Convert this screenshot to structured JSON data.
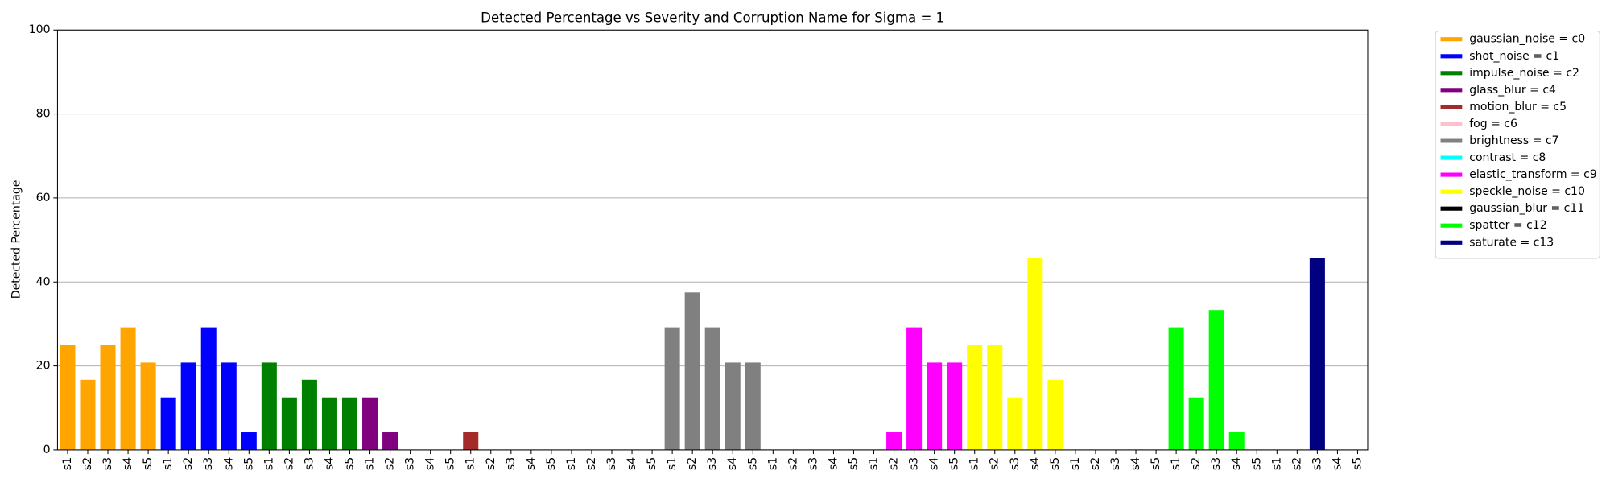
{
  "chart_data": {
    "type": "bar",
    "title": "Detected Percentage vs Severity and Corruption Name for Sigma = 1",
    "y_label": "Detected Percentage",
    "categories": [
      "s1",
      "s2",
      "s3",
      "s4",
      "s5",
      "s1",
      "s2",
      "s3",
      "s4",
      "s5",
      "s1",
      "s2",
      "s3",
      "s4",
      "s5",
      "s1",
      "s2",
      "s3",
      "s4",
      "s5",
      "s1",
      "s2",
      "s3",
      "s4",
      "s5",
      "s1",
      "s2",
      "s3",
      "s4",
      "s5",
      "s1",
      "s2",
      "s3",
      "s4",
      "s5",
      "s1",
      "s2",
      "s3",
      "s4",
      "s5",
      "s1",
      "s2",
      "s3",
      "s4",
      "s5",
      "s1",
      "s2",
      "s3",
      "s4",
      "s5",
      "s1",
      "s2",
      "s3",
      "s4",
      "s5",
      "s1",
      "s2",
      "s3",
      "s4",
      "s5",
      "s1",
      "s2",
      "s3",
      "s4",
      "s5"
    ],
    "values": [
      25,
      16.7,
      25,
      29.2,
      20.8,
      12.5,
      20.8,
      29.2,
      20.8,
      4.2,
      20.8,
      12.5,
      16.7,
      12.5,
      12.5,
      12.5,
      4.2,
      0,
      0,
      0,
      4.2,
      0,
      0,
      0,
      0,
      0,
      0,
      0,
      0,
      0,
      29.2,
      37.5,
      29.2,
      20.8,
      20.8,
      0,
      0,
      0,
      0,
      0,
      0,
      4.2,
      29.2,
      20.8,
      20.8,
      25,
      25,
      12.5,
      45.8,
      16.7,
      0,
      0,
      0,
      0,
      0,
      29.2,
      12.5,
      33.3,
      4.2,
      0,
      0,
      0,
      45.8,
      0,
      0
    ],
    "bar_colors": [
      "orange",
      "orange",
      "orange",
      "orange",
      "orange",
      "blue",
      "blue",
      "blue",
      "blue",
      "blue",
      "green",
      "green",
      "green",
      "green",
      "green",
      "purple",
      "purple",
      "purple",
      "purple",
      "purple",
      "brown",
      "brown",
      "brown",
      "brown",
      "brown",
      "pink",
      "pink",
      "pink",
      "pink",
      "pink",
      "gray",
      "gray",
      "gray",
      "gray",
      "gray",
      "cyan",
      "cyan",
      "cyan",
      "cyan",
      "cyan",
      "magenta",
      "magenta",
      "magenta",
      "magenta",
      "magenta",
      "yellow",
      "yellow",
      "yellow",
      "yellow",
      "yellow",
      "black",
      "black",
      "black",
      "black",
      "black",
      "lime",
      "lime",
      "lime",
      "lime",
      "lime",
      "navy",
      "navy",
      "navy",
      "navy",
      "navy"
    ],
    "legend": [
      {
        "name": "gaussian_noise = c0",
        "color": "orange"
      },
      {
        "name": "shot_noise = c1",
        "color": "blue"
      },
      {
        "name": "impulse_noise = c2",
        "color": "green"
      },
      {
        "name": "glass_blur = c4",
        "color": "purple"
      },
      {
        "name": "motion_blur = c5",
        "color": "brown"
      },
      {
        "name": "fog = c6",
        "color": "pink"
      },
      {
        "name": "brightness = c7",
        "color": "gray"
      },
      {
        "name": "contrast = c8",
        "color": "cyan"
      },
      {
        "name": "elastic_transform = c9",
        "color": "magenta"
      },
      {
        "name": "speckle_noise = c10",
        "color": "yellow"
      },
      {
        "name": "gaussian_blur = c11",
        "color": "black"
      },
      {
        "name": "spatter = c12",
        "color": "lime"
      },
      {
        "name": "saturate = c13",
        "color": "navy"
      }
    ],
    "legend_position": "outside upper right",
    "ylim": [
      0,
      100
    ],
    "yticks": [
      0,
      20,
      40,
      60,
      80,
      100
    ],
    "grid": "y"
  }
}
